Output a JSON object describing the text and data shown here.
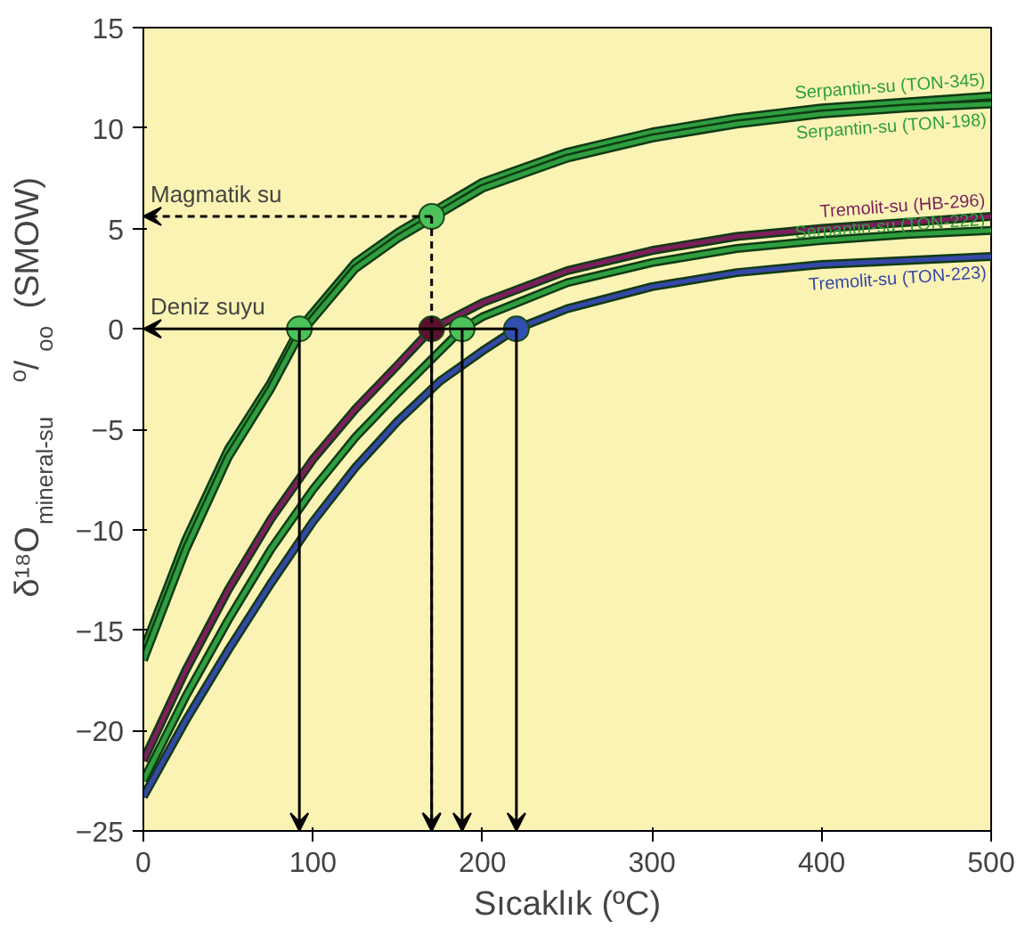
{
  "chart_data": {
    "type": "line",
    "xlabel": "Sıcaklık (ºC)",
    "ylabel": "δ¹⁸O$_{mineral-su}$ $^{o}$/$_{oo}$ (SMOW)",
    "xlim": [
      0,
      500
    ],
    "ylim": [
      -25,
      15
    ],
    "xticks": [
      0,
      100,
      200,
      300,
      400,
      500
    ],
    "yticks": [
      -25,
      -20,
      -15,
      -10,
      -5,
      0,
      5,
      10,
      15
    ],
    "grid": false,
    "line_style": "solid",
    "series": [
      {
        "name": "Serpantin-su (TON-345)",
        "color": "#2f9e3f",
        "x": [
          0,
          25,
          50,
          75,
          92,
          125,
          150,
          170,
          200,
          250,
          300,
          350,
          400,
          450,
          500
        ],
        "values": [
          -16,
          -10.5,
          -6,
          -2.7,
          0,
          3.3,
          4.8,
          5.8,
          7.3,
          8.8,
          9.8,
          10.5,
          11,
          11.3,
          11.6
        ]
      },
      {
        "name": "Serpantin-su (TON-198)",
        "color": "#2f9e3f",
        "x": [
          0,
          25,
          50,
          75,
          92,
          125,
          150,
          170,
          200,
          250,
          300,
          350,
          400,
          450,
          500
        ],
        "values": [
          -16.5,
          -11,
          -6.4,
          -3,
          -0.3,
          3,
          4.5,
          5.5,
          7,
          8.5,
          9.5,
          10.2,
          10.7,
          11,
          11.2
        ]
      },
      {
        "name": "Tremolit-su (HB-296)",
        "color": "#7a1f5c",
        "x": [
          0,
          25,
          50,
          75,
          100,
          125,
          150,
          170,
          200,
          250,
          300,
          350,
          400,
          450,
          500
        ],
        "values": [
          -21.5,
          -17,
          -13,
          -9.5,
          -6.5,
          -4,
          -1.8,
          0,
          1.3,
          2.9,
          3.9,
          4.6,
          5,
          5.3,
          5.6
        ]
      },
      {
        "name": "Serpantin-su (TON-222)",
        "color": "#2f9e3f",
        "x": [
          0,
          25,
          50,
          75,
          100,
          125,
          150,
          188,
          200,
          250,
          300,
          350,
          400,
          450,
          500
        ],
        "values": [
          -22.5,
          -18.3,
          -14.5,
          -11,
          -8,
          -5.4,
          -3.2,
          0,
          0.6,
          2.3,
          3.3,
          4,
          4.4,
          4.7,
          4.9
        ]
      },
      {
        "name": "Tremolit-su (TON-223)",
        "color": "#3548a8",
        "x": [
          0,
          25,
          50,
          75,
          100,
          125,
          150,
          175,
          200,
          220,
          250,
          300,
          350,
          400,
          450,
          500
        ],
        "values": [
          -23.3,
          -19.5,
          -16,
          -12.7,
          -9.6,
          -6.9,
          -4.6,
          -2.6,
          -1.1,
          0,
          1,
          2.1,
          2.8,
          3.2,
          3.4,
          3.6
        ]
      },
      {
        "type": "scatter",
        "marker": "circle",
        "line_style": "solid",
        "x": [
          92,
          170,
          188,
          220
        ],
        "values": [
          0,
          0,
          0,
          0
        ],
        "colors": [
          "#4cc25a",
          "#5a0f2a",
          "#4cc25a",
          "#3050b0"
        ]
      },
      {
        "type": "scatter",
        "marker": "circle",
        "line_style": "dashed",
        "x": [
          170
        ],
        "values": [
          5.6
        ],
        "colors": [
          "#4cc25a"
        ]
      }
    ],
    "annotations": [
      {
        "text": "Magmatik su",
        "x": 170,
        "y": 5.6
      },
      {
        "text": "Deniz suyu",
        "x": 220,
        "y": 0
      }
    ]
  }
}
